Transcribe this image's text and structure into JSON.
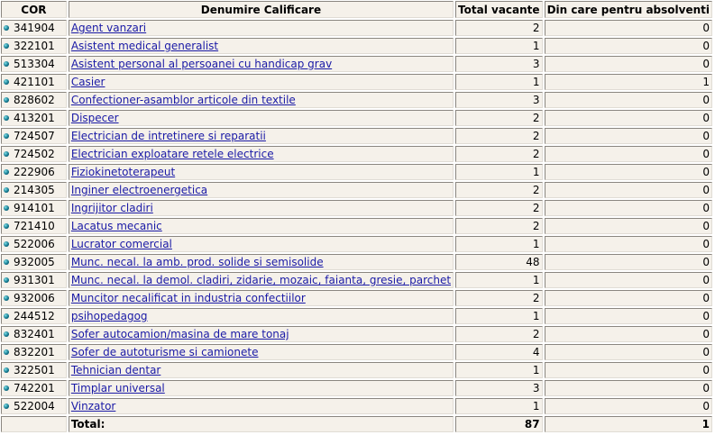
{
  "headers": [
    "COR",
    "Denumire Calificare",
    "Total vacante",
    "Din care pentru absolventi"
  ],
  "rows": [
    [
      "341904",
      "Agent vanzari",
      "2",
      "0"
    ],
    [
      "322101",
      "Asistent medical generalist",
      "1",
      "0"
    ],
    [
      "513304",
      "Asistent personal al persoanei cu handicap grav",
      "3",
      "0"
    ],
    [
      "421101",
      "Casier",
      "1",
      "1"
    ],
    [
      "828602",
      "Confectioner-asamblor articole din textile",
      "3",
      "0"
    ],
    [
      "413201",
      "Dispecer",
      "2",
      "0"
    ],
    [
      "724507",
      "Electrician de intretinere si reparatii",
      "2",
      "0"
    ],
    [
      "724502",
      "Electrician exploatare retele electrice",
      "2",
      "0"
    ],
    [
      "222906",
      "Fiziokinetoterapeut",
      "1",
      "0"
    ],
    [
      "214305",
      "Inginer electroenergetica",
      "2",
      "0"
    ],
    [
      "914101",
      "Ingrijitor cladiri",
      "2",
      "0"
    ],
    [
      "721410",
      "Lacatus mecanic",
      "2",
      "0"
    ],
    [
      "522006",
      "Lucrator comercial",
      "1",
      "0"
    ],
    [
      "932005",
      "Munc. necal. la amb. prod. solide si semisolide",
      "48",
      "0"
    ],
    [
      "931301",
      "Munc. necal. la demol. cladiri, zidarie, mozaic, faianta, gresie, parchet",
      "1",
      "0"
    ],
    [
      "932006",
      "Muncitor necalificat in industria confectiilor",
      "2",
      "0"
    ],
    [
      "244512",
      "psihopedagog",
      "1",
      "0"
    ],
    [
      "832401",
      "Sofer autocamion/masina de mare tonaj",
      "2",
      "0"
    ],
    [
      "832201",
      "Sofer de autoturisme si camionete",
      "4",
      "0"
    ],
    [
      "322501",
      "Tehnician dentar",
      "1",
      "0"
    ],
    [
      "742201",
      "Timplar universal",
      "3",
      "0"
    ],
    [
      "522004",
      "Vinzator",
      "1",
      "0"
    ]
  ],
  "total": {
    "label": "Total:",
    "vacante": "87",
    "absolventi": "1"
  },
  "icons": {
    "row_bullet": "teal-sphere-bullet-icon"
  }
}
